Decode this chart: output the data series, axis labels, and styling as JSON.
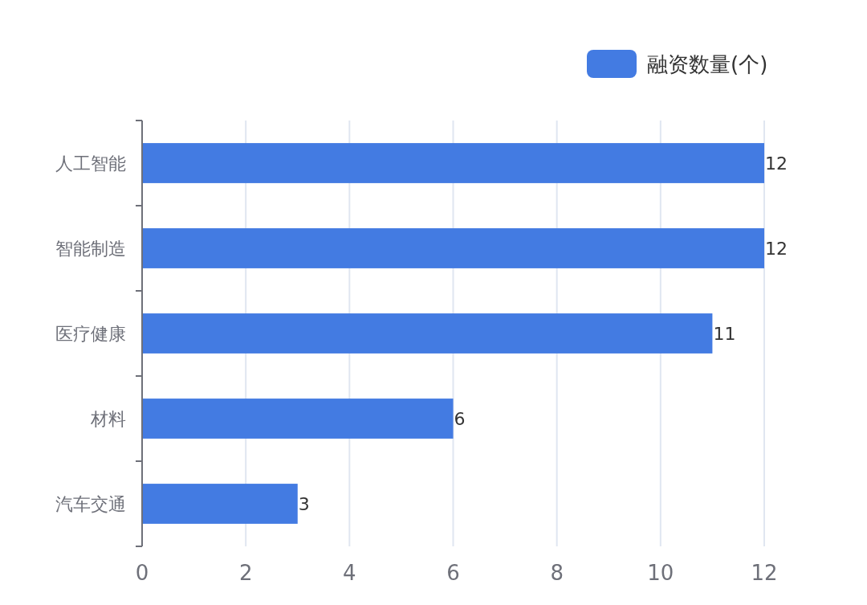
{
  "chart_data": {
    "type": "bar",
    "orientation": "horizontal",
    "categories": [
      "人工智能",
      "智能制造",
      "医疗健康",
      "材料",
      "汽车交通"
    ],
    "series": [
      {
        "name": "融资数量(个)",
        "color": "#437be2",
        "values": [
          12,
          12,
          11,
          6,
          3
        ]
      }
    ],
    "xlim": [
      0,
      12
    ],
    "xticks": [
      0,
      2,
      4,
      6,
      8,
      10,
      12
    ],
    "grid": "x",
    "legend": "top right",
    "data_labels": true
  }
}
